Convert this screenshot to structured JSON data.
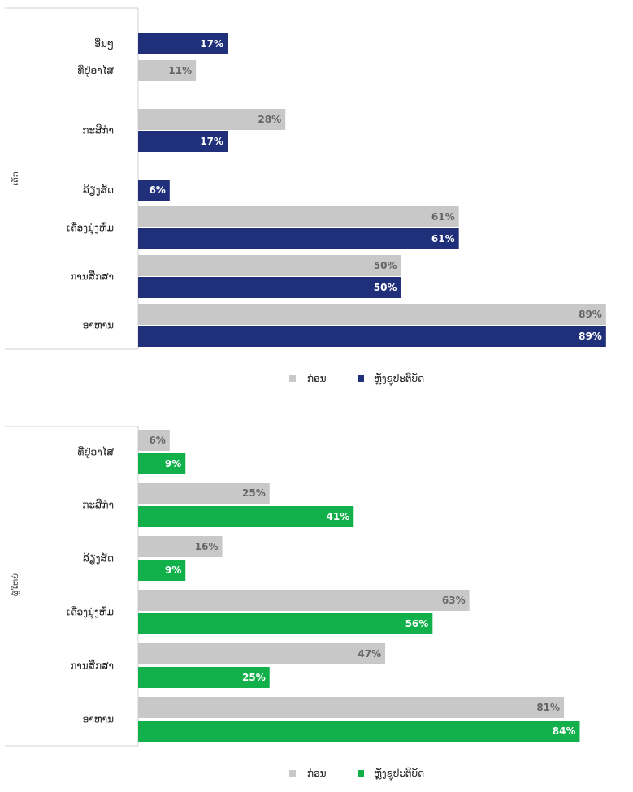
{
  "colors": {
    "before": "#c8c8c8",
    "panel1_after": "#1f2f7a",
    "panel2_after": "#12b04b"
  },
  "chart_data": [
    {
      "type": "bar",
      "orientation": "horizontal",
      "ylabel": "ເດັກ",
      "categories": [
        "ອື່ນໆ",
        "ທີ່ຢູ່ອາໄສ",
        "ກະສິກຳ",
        "ລ້ຽງສັດ",
        "ເຄື່ອງນຸ່ງຫົ່ມ",
        "ການສຶກສາ",
        "ອາຫານ"
      ],
      "series": [
        {
          "name": "ກ່ອນ",
          "values": [
            null,
            11,
            28,
            null,
            61,
            50,
            89
          ],
          "labels": [
            "",
            "11%",
            "28%",
            "",
            "61%",
            "50%",
            "89%"
          ]
        },
        {
          "name": "ຫຼັງຊຸປະຕິບັດ",
          "values": [
            17,
            null,
            17,
            6,
            61,
            50,
            89
          ],
          "labels": [
            "17%",
            "",
            "17%",
            "6%",
            "61%",
            "50%",
            "89%"
          ]
        }
      ],
      "xlim": [
        0,
        90
      ],
      "legend": "bottom"
    },
    {
      "type": "bar",
      "orientation": "horizontal",
      "ylabel": "ຜູ້ໃຫຍ່",
      "categories": [
        "ທີ່ຢູ່ອາໄສ",
        "ກະສິກຳ",
        "ລ້ຽງສັດ",
        "ເຄື່ອງນຸ່ງຫົ່ມ",
        "ການສຶກສາ",
        "ອາຫານ"
      ],
      "series": [
        {
          "name": "ກ່ອນ",
          "values": [
            6,
            25,
            16,
            63,
            47,
            81
          ],
          "labels": [
            "6%",
            "25%",
            "16%",
            "63%",
            "47%",
            "81%"
          ]
        },
        {
          "name": "ຫຼັງຊຸປະຕິບັດ",
          "values": [
            9,
            41,
            9,
            56,
            25,
            84
          ],
          "labels": [
            "9%",
            "41%",
            "9%",
            "56%",
            "25%",
            "84%"
          ]
        }
      ],
      "xlim": [
        0,
        90
      ],
      "legend": "bottom"
    }
  ]
}
